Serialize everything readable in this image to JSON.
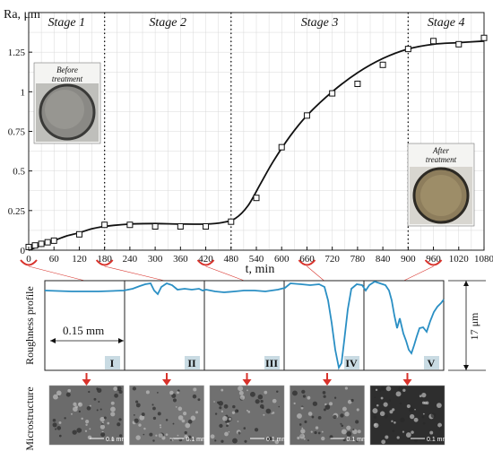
{
  "chart_data": {
    "type": "scatter",
    "ylabel": "Ra, μm",
    "xlabel": "t, min",
    "xlim": [
      0,
      1080
    ],
    "ylim": [
      0,
      1.5
    ],
    "x_ticks": [
      0,
      60,
      120,
      180,
      240,
      300,
      360,
      420,
      480,
      540,
      600,
      660,
      720,
      780,
      840,
      900,
      960,
      1020,
      1080
    ],
    "y_ticks": [
      0,
      0.25,
      0.5,
      0.75,
      1,
      1.25
    ],
    "y_tick_labels": [
      "0",
      "0.25",
      "0.5",
      "0.75",
      "1",
      "1.25"
    ],
    "grid": true,
    "stages": [
      {
        "label": "Stage 1",
        "start": 0,
        "end": 180
      },
      {
        "label": "Stage 2",
        "start": 180,
        "end": 480
      },
      {
        "label": "Stage 3",
        "start": 480,
        "end": 900
      },
      {
        "label": "Stage 4",
        "start": 900,
        "end": 1080
      }
    ],
    "stage_boundaries": [
      180,
      480,
      900
    ],
    "points": [
      {
        "x": 0,
        "y": 0.02
      },
      {
        "x": 15,
        "y": 0.03
      },
      {
        "x": 30,
        "y": 0.04
      },
      {
        "x": 45,
        "y": 0.05
      },
      {
        "x": 60,
        "y": 0.06
      },
      {
        "x": 120,
        "y": 0.1
      },
      {
        "x": 180,
        "y": 0.16
      },
      {
        "x": 240,
        "y": 0.16
      },
      {
        "x": 300,
        "y": 0.15
      },
      {
        "x": 360,
        "y": 0.15
      },
      {
        "x": 420,
        "y": 0.15
      },
      {
        "x": 480,
        "y": 0.18
      },
      {
        "x": 540,
        "y": 0.33
      },
      {
        "x": 600,
        "y": 0.65
      },
      {
        "x": 660,
        "y": 0.85
      },
      {
        "x": 720,
        "y": 0.99
      },
      {
        "x": 780,
        "y": 1.05
      },
      {
        "x": 840,
        "y": 1.17
      },
      {
        "x": 900,
        "y": 1.27
      },
      {
        "x": 960,
        "y": 1.32
      },
      {
        "x": 1020,
        "y": 1.3
      },
      {
        "x": 1080,
        "y": 1.34
      }
    ],
    "fit_curve": [
      {
        "x": 0,
        "y": 0.0
      },
      {
        "x": 30,
        "y": 0.03
      },
      {
        "x": 60,
        "y": 0.06
      },
      {
        "x": 90,
        "y": 0.09
      },
      {
        "x": 120,
        "y": 0.11
      },
      {
        "x": 150,
        "y": 0.135
      },
      {
        "x": 180,
        "y": 0.15
      },
      {
        "x": 240,
        "y": 0.165
      },
      {
        "x": 300,
        "y": 0.168
      },
      {
        "x": 360,
        "y": 0.165
      },
      {
        "x": 420,
        "y": 0.165
      },
      {
        "x": 460,
        "y": 0.175
      },
      {
        "x": 490,
        "y": 0.2
      },
      {
        "x": 520,
        "y": 0.28
      },
      {
        "x": 550,
        "y": 0.42
      },
      {
        "x": 580,
        "y": 0.56
      },
      {
        "x": 620,
        "y": 0.72
      },
      {
        "x": 660,
        "y": 0.85
      },
      {
        "x": 720,
        "y": 1.0
      },
      {
        "x": 780,
        "y": 1.12
      },
      {
        "x": 840,
        "y": 1.21
      },
      {
        "x": 900,
        "y": 1.27
      },
      {
        "x": 960,
        "y": 1.3
      },
      {
        "x": 1020,
        "y": 1.31
      },
      {
        "x": 1080,
        "y": 1.32
      }
    ],
    "highlighted_times": [
      0,
      180,
      420,
      660,
      960
    ]
  },
  "insets": {
    "before": "Before\ntreatment",
    "after": "After\ntreatment"
  },
  "profile": {
    "ylabel": "Roughness profile",
    "scale_label": "0.15 mm",
    "height_label": "17 μm",
    "panels": [
      "I",
      "II",
      "III",
      "IV",
      "V"
    ]
  },
  "microstructure": {
    "label": "Microstructure",
    "scale_text": "0.1 mm"
  },
  "colors": {
    "profile_line": "#2a8fc4",
    "marker": "#d8322b",
    "curve": "#111111",
    "grid": "#d8d8d8"
  }
}
